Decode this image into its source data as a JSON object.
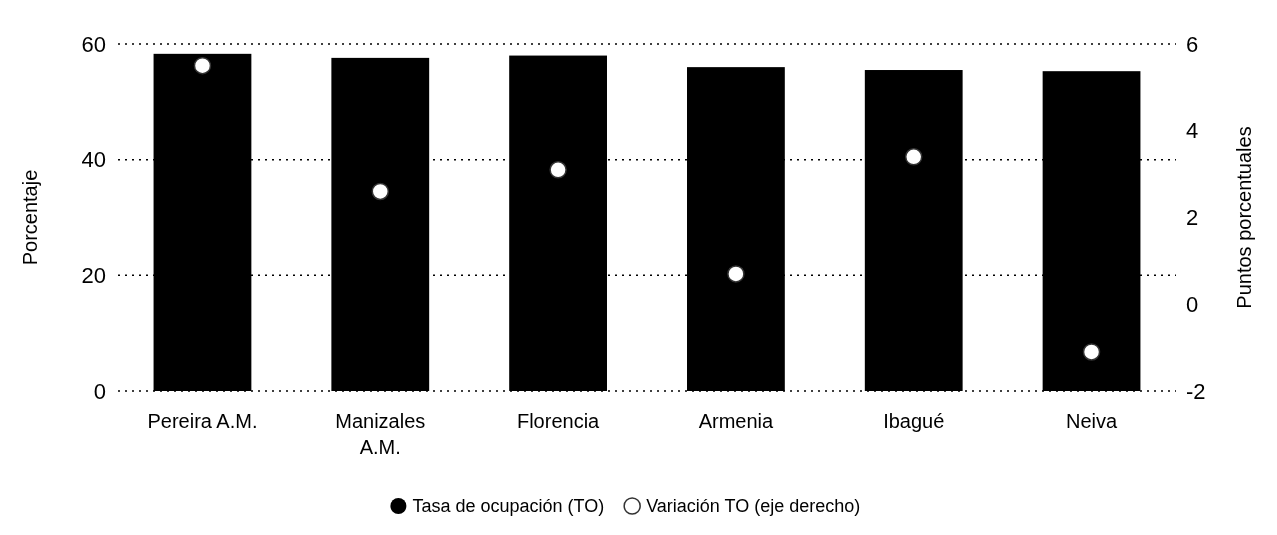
{
  "chart_data": {
    "type": "bar",
    "ylabel": "Porcentaje",
    "y2label": "Puntos porcentuales",
    "categories": [
      "Pereira A.M.",
      "Manizales A.M.",
      "Florencia",
      "Armenia",
      "Ibagué",
      "Neiva"
    ],
    "series": [
      {
        "name": "Tasa de ocupación (TO)",
        "color": "#000000",
        "values": [
          58.3,
          57.6,
          58.0,
          56.0,
          55.5,
          55.3
        ]
      },
      {
        "name": "Variación TO (eje derecho)",
        "type": "scatter",
        "axis": "y2",
        "color": "#ffffff",
        "values": [
          5.5,
          2.6,
          3.1,
          0.7,
          3.4,
          -1.1
        ]
      }
    ],
    "ylim": [
      0,
      60
    ],
    "yticks": [
      0,
      20,
      40,
      60
    ],
    "y2lim": [
      -2,
      6
    ],
    "y2ticks": [
      -2,
      0,
      2,
      4,
      6
    ],
    "grid": "y",
    "legend": "bottom",
    "marker": "circle"
  }
}
